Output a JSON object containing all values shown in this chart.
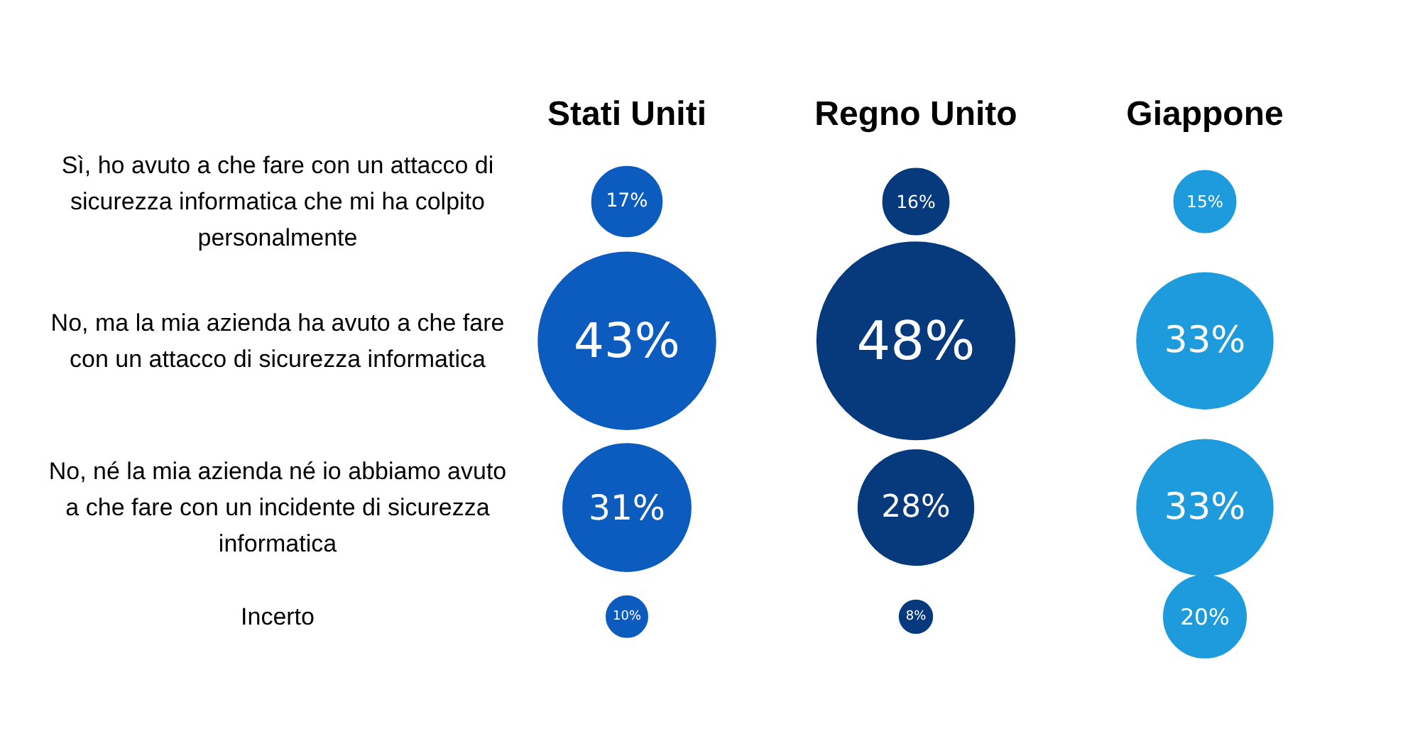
{
  "chart_data": {
    "type": "other",
    "categories": [
      "Sì, ho avuto a che fare con un attacco di\nsicurezza informatica che mi ha colpito\npersonalmente",
      "No, ma la mia azienda ha avuto a che fare\ncon un attacco di sicurezza informatica",
      "No, né la mia azienda né io abbiamo avuto\na che fare con un incidente di sicurezza\ninformatica",
      "Incerto"
    ],
    "series": [
      {
        "name": "Stati Uniti",
        "color": "#0c5bbf",
        "values": [
          17,
          43,
          31,
          10
        ],
        "value_labels": [
          "17%",
          "43%",
          "31%",
          "10%"
        ]
      },
      {
        "name": "Regno Unito",
        "color": "#063a7d",
        "values": [
          16,
          48,
          28,
          8
        ],
        "value_labels": [
          "16%",
          "48%",
          "28%",
          "8%"
        ]
      },
      {
        "name": "Giappone",
        "color": "#1e9bdc",
        "values": [
          15,
          33,
          33,
          20
        ],
        "value_labels": [
          "15%",
          "33%",
          "33%",
          "20%"
        ]
      }
    ]
  }
}
